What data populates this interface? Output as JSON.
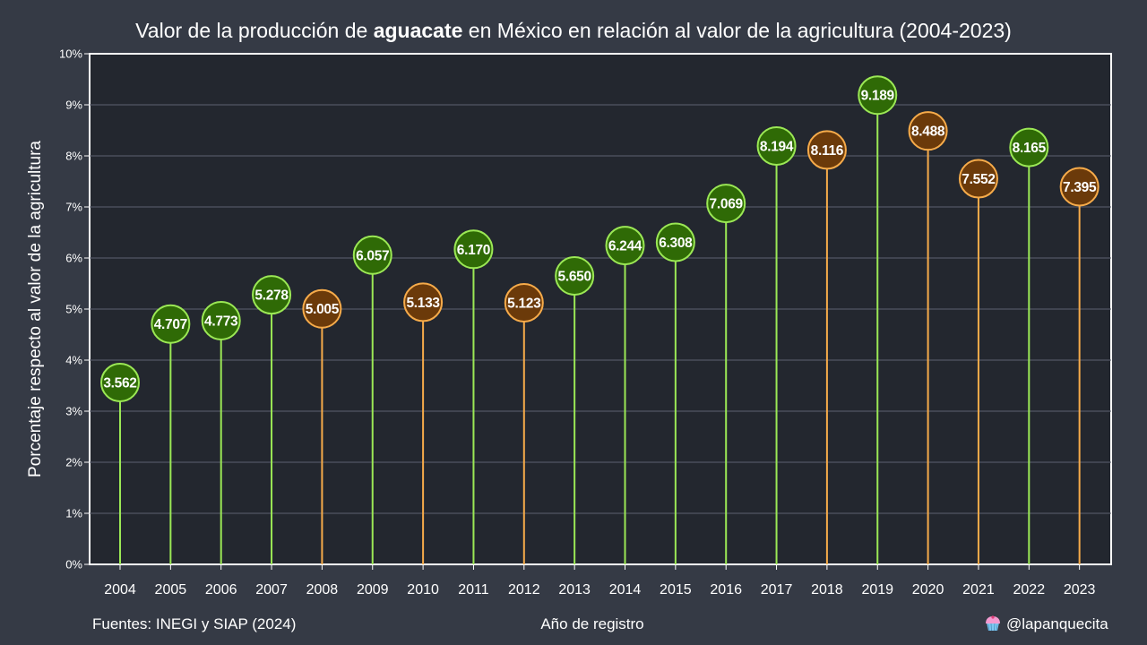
{
  "title": {
    "prefix": "Valor de la producción de ",
    "emphasis": "aguacate",
    "suffix": " en México en relación al valor de la agricultura (2004-2023)"
  },
  "footer": {
    "sources": "Fuentes: INEGI y SIAP (2024)",
    "handle": "@lapanquecita"
  },
  "colors": {
    "background": "#353a45",
    "plot_background": "#23272f",
    "increase_fill": "#2f6a06",
    "increase_stroke": "#9be855",
    "decrease_fill": "#6b3a0a",
    "decrease_stroke": "#f6ab4a",
    "grid": "#5c6270",
    "axis": "#ffffff"
  },
  "icons": {
    "handle_icon": "cupcake-icon"
  },
  "chart_data": {
    "type": "lollipop",
    "title": "Valor de la producción de aguacate en México en relación al valor de la agricultura (2004-2023)",
    "xlabel": "Año de registro",
    "ylabel": "Porcentaje respecto al valor de la agricultura",
    "ylim": [
      0,
      10
    ],
    "yticks": [
      "0%",
      "1%",
      "2%",
      "3%",
      "4%",
      "5%",
      "6%",
      "7%",
      "8%",
      "9%",
      "10%"
    ],
    "grid": true,
    "color_rule": "green = increase vs previous year, orange = decrease vs previous year",
    "categories": [
      "2004",
      "2005",
      "2006",
      "2007",
      "2008",
      "2009",
      "2010",
      "2011",
      "2012",
      "2013",
      "2014",
      "2015",
      "2016",
      "2017",
      "2018",
      "2019",
      "2020",
      "2021",
      "2022",
      "2023"
    ],
    "values": [
      3.562,
      4.707,
      4.773,
      5.278,
      5.005,
      6.057,
      5.133,
      6.17,
      5.123,
      5.65,
      6.244,
      6.308,
      7.069,
      8.194,
      8.116,
      9.189,
      8.488,
      7.552,
      8.165,
      7.395
    ],
    "labels": [
      "3.562",
      "4.707",
      "4.773",
      "5.278",
      "5.005",
      "6.057",
      "5.133",
      "6.170",
      "5.123",
      "5.650",
      "6.244",
      "6.308",
      "7.069",
      "8.194",
      "8.116",
      "9.189",
      "8.488",
      "7.552",
      "8.165",
      "7.395"
    ],
    "trend": [
      "up",
      "up",
      "up",
      "up",
      "down",
      "up",
      "down",
      "up",
      "down",
      "up",
      "up",
      "up",
      "up",
      "up",
      "down",
      "up",
      "down",
      "down",
      "up",
      "down"
    ]
  }
}
